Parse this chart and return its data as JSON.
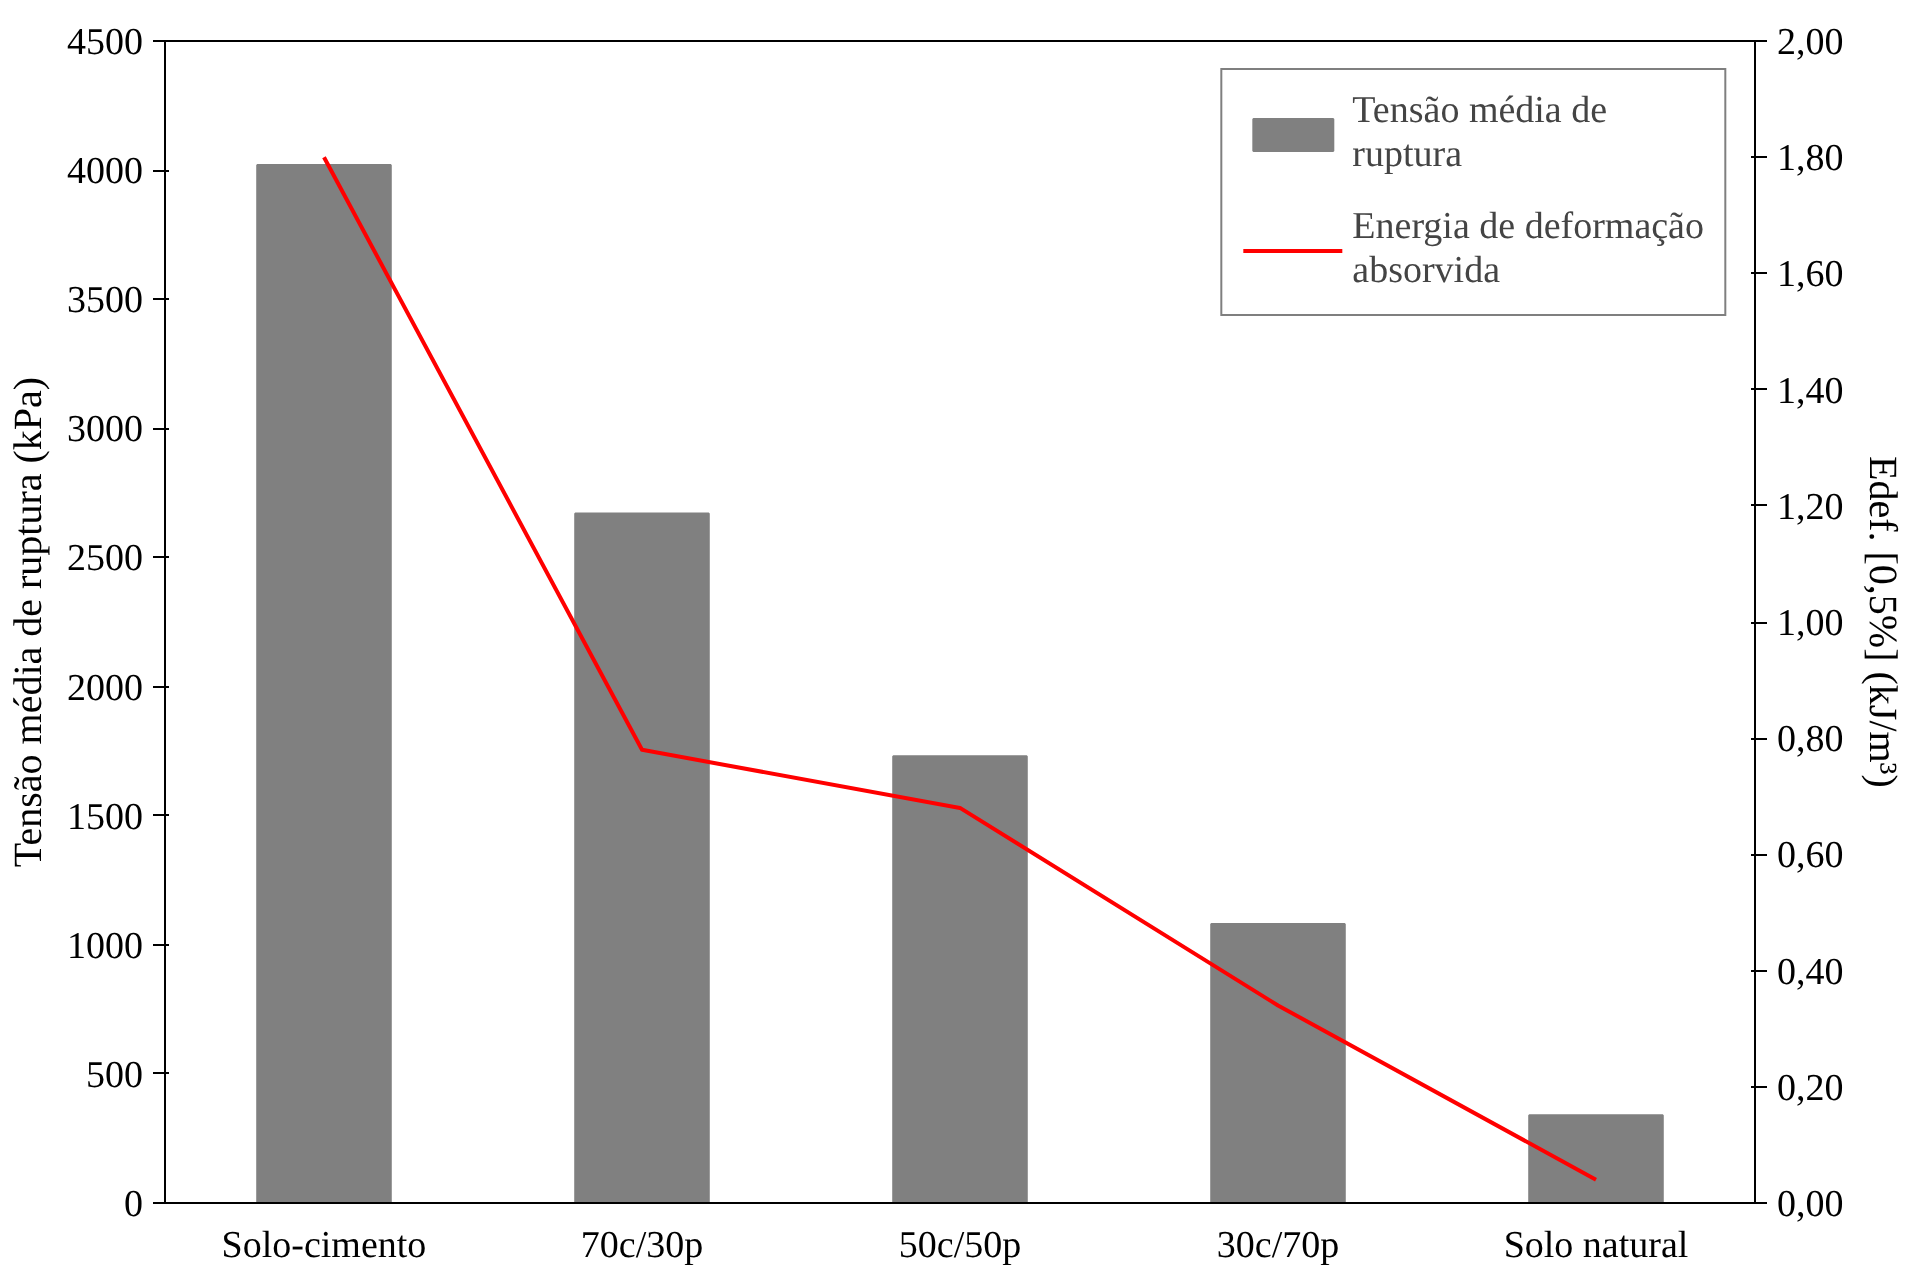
{
  "chart_data": {
    "type": "bar",
    "categories": [
      "Solo-cimento",
      "70c/30p",
      "50c/50p",
      "30c/70p",
      "Solo natural"
    ],
    "ylabel": "Tensão média de ruptura (kPa)",
    "y2label": "Edef. [0,5%] (kJ/m³)",
    "ylim": [
      0,
      4500
    ],
    "yticks": [
      0,
      500,
      1000,
      1500,
      2000,
      2500,
      3000,
      3500,
      4000,
      4500
    ],
    "y2lim": [
      0,
      2.0
    ],
    "y2ticks": [
      {
        "value": 0,
        "label": "0,00"
      },
      {
        "value": 0.2,
        "label": "0,20"
      },
      {
        "value": 0.4,
        "label": "0,40"
      },
      {
        "value": 0.6,
        "label": "0,60"
      },
      {
        "value": 0.8,
        "label": "0,80"
      },
      {
        "value": 1.0,
        "label": "1,00"
      },
      {
        "value": 1.2,
        "label": "1,20"
      },
      {
        "value": 1.4,
        "label": "1,40"
      },
      {
        "value": 1.6,
        "label": "1,60"
      },
      {
        "value": 1.8,
        "label": "1,80"
      },
      {
        "value": 2.0,
        "label": "2,00"
      }
    ],
    "grid": false,
    "legend": "top right",
    "series": [
      {
        "name": "Tensão média de ruptura",
        "color": "#808080",
        "values": [
          4020,
          2670,
          1730,
          1080,
          340
        ]
      },
      {
        "name": "Energia de deformação absorvida",
        "type": "line",
        "axis": "y2",
        "color": "#ff0000",
        "values": [
          1.8,
          0.78,
          0.68,
          0.34,
          0.04
        ]
      }
    ]
  }
}
